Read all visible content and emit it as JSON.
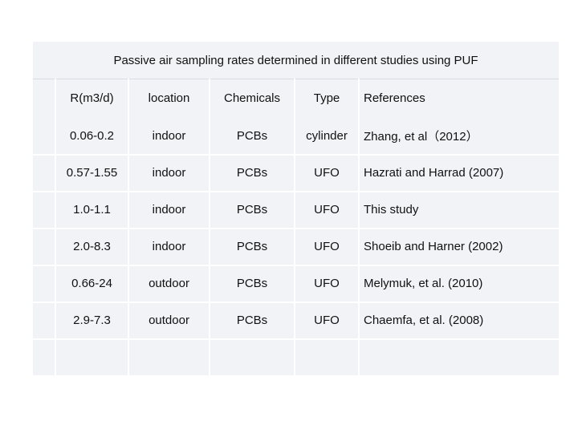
{
  "table": {
    "title": "Passive air sampling rates determined in different studies using PUF",
    "headers": [
      "R(m3/d)",
      "location",
      "Chemicals",
      "Type",
      "References"
    ],
    "rows": [
      [
        "0.06-0.2",
        "indoor",
        "PCBs",
        "cylinder",
        "Zhang, et al（2012）"
      ],
      [
        "0.57-1.55",
        "indoor",
        "PCBs",
        "UFO",
        "Hazrati and Harrad (2007)"
      ],
      [
        "1.0-1.1",
        "indoor",
        "PCBs",
        "UFO",
        "This study"
      ],
      [
        "2.0-8.3",
        "indoor",
        "PCBs",
        "UFO",
        "Shoeib and Harner (2002)"
      ],
      [
        "0.66-24",
        "outdoor",
        "PCBs",
        "UFO",
        "Melymuk, et al. (2010)"
      ],
      [
        "2.9-7.3",
        "outdoor",
        "PCBs",
        "UFO",
        "Chaemfa, et al. (2008)"
      ]
    ]
  }
}
